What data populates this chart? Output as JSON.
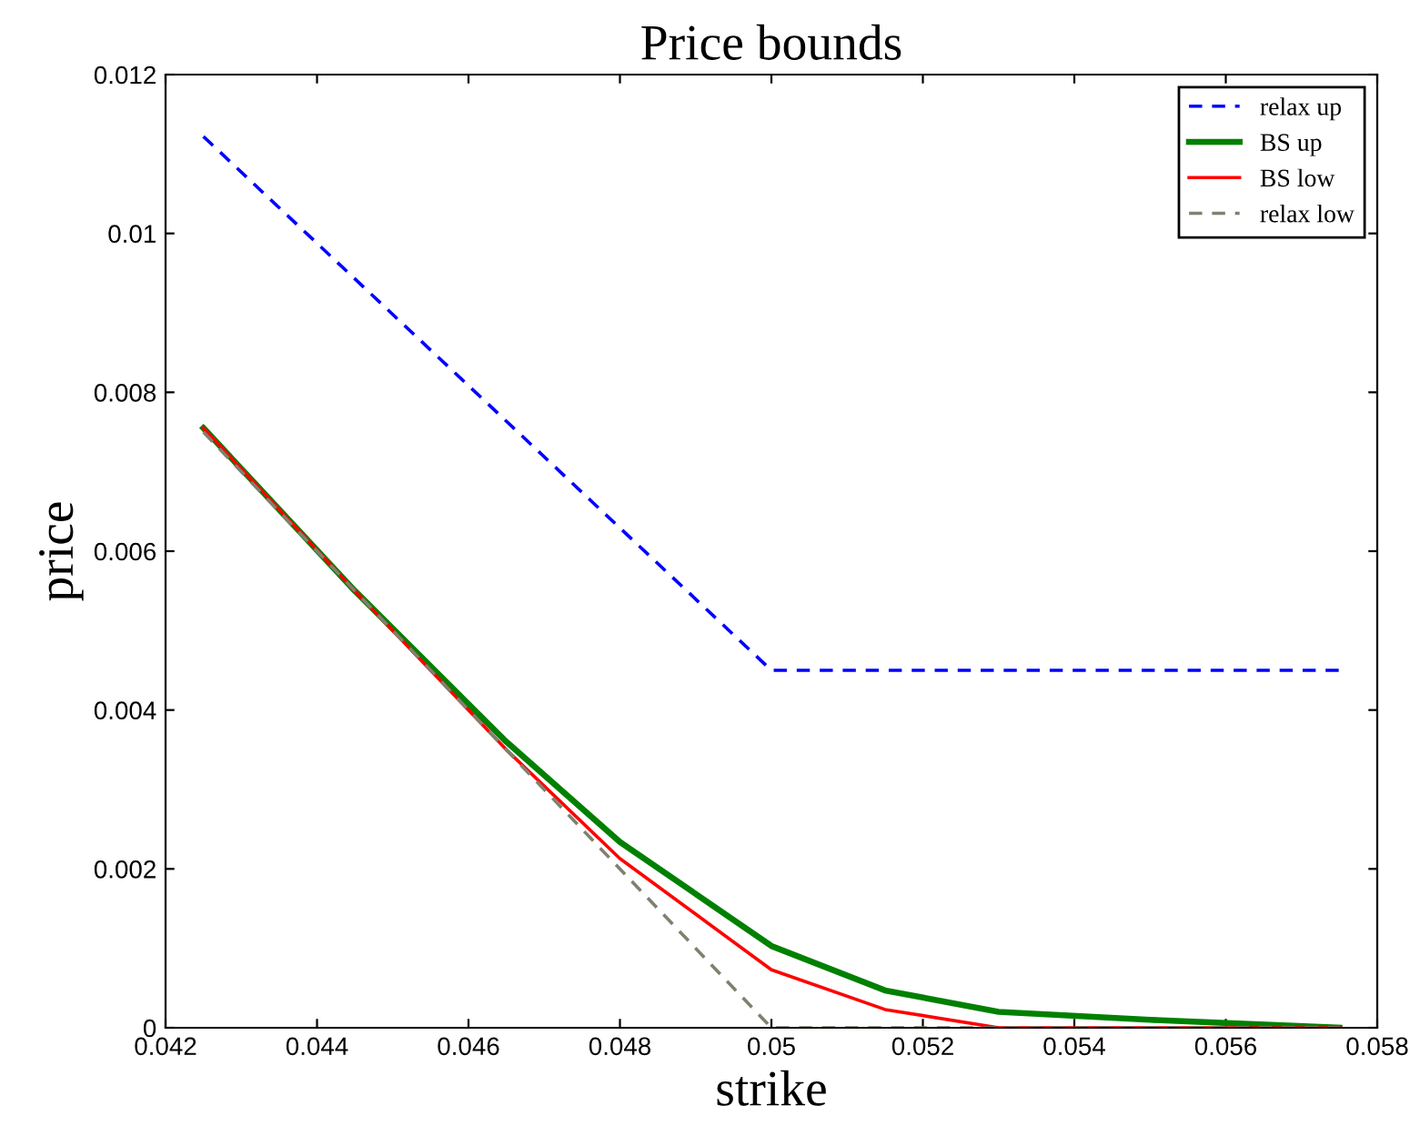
{
  "chart_data": {
    "type": "line",
    "title": "Price bounds",
    "xlabel": "strike",
    "ylabel": "price",
    "xlim": [
      0.042,
      0.058
    ],
    "xticks": [
      0.042,
      0.044,
      0.046,
      0.048,
      0.05,
      0.052,
      0.054,
      0.056,
      0.058
    ],
    "ylim": [
      0,
      0.012
    ],
    "yticks": [
      0,
      0.002,
      0.004,
      0.006,
      0.008,
      0.01,
      0.012
    ],
    "legend": "top right",
    "grid": false,
    "series": [
      {
        "name": "relax up",
        "color": "#0000ff",
        "line_style": "dashed",
        "x": [
          0.0425,
          0.05,
          0.0575
        ],
        "values": [
          0.01122,
          0.0045,
          0.0045
        ]
      },
      {
        "name": "BS up",
        "color": "#008000",
        "line_style": "solid",
        "x": [
          0.0425,
          0.0445,
          0.0465,
          0.048,
          0.05,
          0.0515,
          0.053,
          0.055,
          0.0575
        ],
        "values": [
          0.00755,
          0.0055,
          0.0036,
          0.00234,
          0.00103,
          0.00047,
          0.0002,
          0.0001,
          0
        ]
      },
      {
        "name": "BS low",
        "color": "#ff0000",
        "line_style": "solid",
        "x": [
          0.0425,
          0.0445,
          0.0465,
          0.048,
          0.05,
          0.0515,
          0.053,
          0.055,
          0.0575
        ],
        "values": [
          0.00755,
          0.0055,
          0.0035,
          0.00213,
          0.00073,
          0.00023,
          0,
          0,
          0
        ]
      },
      {
        "name": "relax low",
        "color": "#808070",
        "line_style": "dashed",
        "x": [
          0.0425,
          0.05,
          0.0575
        ],
        "values": [
          0.0075,
          0,
          0
        ]
      }
    ]
  }
}
